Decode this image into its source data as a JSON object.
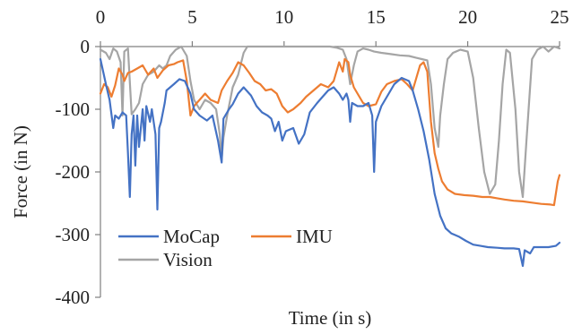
{
  "chart_data": {
    "type": "line",
    "title": "",
    "xlabel": "Time (in s)",
    "ylabel": "Force (in N)",
    "xlim": [
      0,
      25
    ],
    "ylim": [
      -400,
      0
    ],
    "x_ticks": [
      0,
      5,
      10,
      15,
      20,
      25
    ],
    "y_ticks": [
      0,
      -100,
      -200,
      -300,
      -400
    ],
    "x_tick_labels": [
      "0",
      "5",
      "10",
      "15",
      "20",
      "25"
    ],
    "y_tick_labels": [
      "0",
      "-100",
      "-200",
      "-300",
      "-400"
    ],
    "x_axis_position": "top",
    "grid": false,
    "legend_position": "lower-left",
    "series": [
      {
        "name": "MoCap",
        "color": "#4472c4",
        "points": [
          [
            0,
            -20
          ],
          [
            0.3,
            -60
          ],
          [
            0.5,
            -85
          ],
          [
            0.7,
            -130
          ],
          [
            0.8,
            -110
          ],
          [
            1.0,
            -115
          ],
          [
            1.2,
            -105
          ],
          [
            1.4,
            -110
          ],
          [
            1.5,
            -170
          ],
          [
            1.6,
            -240
          ],
          [
            1.7,
            -140
          ],
          [
            1.8,
            -110
          ],
          [
            1.9,
            -190
          ],
          [
            2.0,
            -110
          ],
          [
            2.1,
            -160
          ],
          [
            2.3,
            -100
          ],
          [
            2.4,
            -150
          ],
          [
            2.5,
            -95
          ],
          [
            2.7,
            -120
          ],
          [
            2.8,
            -100
          ],
          [
            3.0,
            -140
          ],
          [
            3.1,
            -260
          ],
          [
            3.2,
            -130
          ],
          [
            3.3,
            -120
          ],
          [
            3.5,
            -90
          ],
          [
            3.6,
            -70
          ],
          [
            3.8,
            -65
          ],
          [
            4.0,
            -60
          ],
          [
            4.3,
            -52
          ],
          [
            4.6,
            -55
          ],
          [
            4.9,
            -75
          ],
          [
            5.1,
            -100
          ],
          [
            5.4,
            -110
          ],
          [
            5.8,
            -118
          ],
          [
            6.1,
            -110
          ],
          [
            6.4,
            -150
          ],
          [
            6.6,
            -185
          ],
          [
            6.7,
            -115
          ],
          [
            7.0,
            -100
          ],
          [
            7.2,
            -92
          ],
          [
            7.5,
            -75
          ],
          [
            7.8,
            -65
          ],
          [
            8.2,
            -78
          ],
          [
            8.5,
            -95
          ],
          [
            8.8,
            -105
          ],
          [
            9.1,
            -110
          ],
          [
            9.3,
            -115
          ],
          [
            9.5,
            -135
          ],
          [
            9.7,
            -120
          ],
          [
            9.9,
            -150
          ],
          [
            10.1,
            -135
          ],
          [
            10.5,
            -130
          ],
          [
            10.8,
            -155
          ],
          [
            11.1,
            -140
          ],
          [
            11.4,
            -105
          ],
          [
            11.8,
            -90
          ],
          [
            12.1,
            -80
          ],
          [
            12.4,
            -70
          ],
          [
            12.7,
            -65
          ],
          [
            13.0,
            -75
          ],
          [
            13.2,
            -85
          ],
          [
            13.4,
            -75
          ],
          [
            13.5,
            -85
          ],
          [
            13.6,
            -120
          ],
          [
            13.7,
            -90
          ],
          [
            14.0,
            -95
          ],
          [
            14.3,
            -95
          ],
          [
            14.6,
            -90
          ],
          [
            14.8,
            -110
          ],
          [
            14.9,
            -200
          ],
          [
            15.0,
            -120
          ],
          [
            15.3,
            -95
          ],
          [
            15.6,
            -80
          ],
          [
            16.0,
            -60
          ],
          [
            16.4,
            -50
          ],
          [
            16.8,
            -55
          ],
          [
            17.0,
            -70
          ],
          [
            17.3,
            -100
          ],
          [
            17.6,
            -135
          ],
          [
            17.9,
            -180
          ],
          [
            18.2,
            -235
          ],
          [
            18.5,
            -270
          ],
          [
            18.8,
            -290
          ],
          [
            19.1,
            -298
          ],
          [
            19.5,
            -303
          ],
          [
            19.9,
            -310
          ],
          [
            20.3,
            -316
          ],
          [
            20.7,
            -318
          ],
          [
            21.1,
            -320
          ],
          [
            21.6,
            -321
          ],
          [
            22.0,
            -322
          ],
          [
            22.5,
            -322
          ],
          [
            22.8,
            -323
          ],
          [
            23.0,
            -350
          ],
          [
            23.1,
            -325
          ],
          [
            23.4,
            -330
          ],
          [
            23.6,
            -320
          ],
          [
            24.0,
            -320
          ],
          [
            24.4,
            -320
          ],
          [
            24.8,
            -318
          ],
          [
            25.0,
            -313
          ]
        ]
      },
      {
        "name": "IMU",
        "color": "#ed7d31",
        "points": [
          [
            0,
            -75
          ],
          [
            0.2,
            -60
          ],
          [
            0.4,
            -65
          ],
          [
            0.6,
            -80
          ],
          [
            0.8,
            -62
          ],
          [
            1.0,
            -35
          ],
          [
            1.2,
            -45
          ],
          [
            1.3,
            -55
          ],
          [
            1.5,
            -42
          ],
          [
            1.7,
            -40
          ],
          [
            2.0,
            -35
          ],
          [
            2.3,
            -30
          ],
          [
            2.6,
            -45
          ],
          [
            2.9,
            -35
          ],
          [
            3.1,
            -50
          ],
          [
            3.4,
            -38
          ],
          [
            3.7,
            -30
          ],
          [
            4.0,
            -28
          ],
          [
            4.2,
            -25
          ],
          [
            4.5,
            -22
          ],
          [
            4.7,
            -55
          ],
          [
            4.9,
            -110
          ],
          [
            5.1,
            -95
          ],
          [
            5.4,
            -85
          ],
          [
            5.7,
            -75
          ],
          [
            6.0,
            -85
          ],
          [
            6.4,
            -90
          ],
          [
            6.6,
            -70
          ],
          [
            6.9,
            -55
          ],
          [
            7.2,
            -42
          ],
          [
            7.5,
            -25
          ],
          [
            7.8,
            -30
          ],
          [
            8.1,
            -42
          ],
          [
            8.4,
            -55
          ],
          [
            8.7,
            -60
          ],
          [
            9.0,
            -70
          ],
          [
            9.3,
            -68
          ],
          [
            9.6,
            -75
          ],
          [
            9.9,
            -95
          ],
          [
            10.2,
            -105
          ],
          [
            10.5,
            -100
          ],
          [
            10.9,
            -90
          ],
          [
            11.2,
            -80
          ],
          [
            11.6,
            -70
          ],
          [
            12.0,
            -60
          ],
          [
            12.4,
            -65
          ],
          [
            12.7,
            -55
          ],
          [
            12.9,
            -35
          ],
          [
            13.0,
            -25
          ],
          [
            13.2,
            -40
          ],
          [
            13.3,
            -20
          ],
          [
            13.5,
            -25
          ],
          [
            13.6,
            -45
          ],
          [
            13.8,
            -65
          ],
          [
            14.0,
            -75
          ],
          [
            14.3,
            -90
          ],
          [
            14.6,
            -95
          ],
          [
            15.0,
            -92
          ],
          [
            15.3,
            -72
          ],
          [
            15.6,
            -60
          ],
          [
            16.0,
            -55
          ],
          [
            16.4,
            -52
          ],
          [
            16.7,
            -60
          ],
          [
            17.0,
            -70
          ],
          [
            17.2,
            -50
          ],
          [
            17.4,
            -30
          ],
          [
            17.6,
            -25
          ],
          [
            17.8,
            -40
          ],
          [
            18.0,
            -120
          ],
          [
            18.2,
            -170
          ],
          [
            18.4,
            -195
          ],
          [
            18.6,
            -215
          ],
          [
            18.9,
            -228
          ],
          [
            19.3,
            -235
          ],
          [
            19.8,
            -237
          ],
          [
            20.3,
            -238
          ],
          [
            20.8,
            -240
          ],
          [
            21.2,
            -240
          ],
          [
            21.6,
            -242
          ],
          [
            22.0,
            -244
          ],
          [
            22.5,
            -246
          ],
          [
            23.0,
            -247
          ],
          [
            23.5,
            -249
          ],
          [
            24.0,
            -251
          ],
          [
            24.5,
            -252
          ],
          [
            24.7,
            -253
          ],
          [
            24.9,
            -215
          ],
          [
            25.0,
            -205
          ]
        ]
      },
      {
        "name": "Vision",
        "color": "#a5a5a5",
        "points": [
          [
            0,
            -5
          ],
          [
            0.3,
            -10
          ],
          [
            0.5,
            -20
          ],
          [
            0.7,
            -3
          ],
          [
            0.9,
            -8
          ],
          [
            1.1,
            -25
          ],
          [
            1.2,
            -110
          ],
          [
            1.3,
            -8
          ],
          [
            1.5,
            -3
          ],
          [
            1.7,
            -108
          ],
          [
            1.9,
            -100
          ],
          [
            2.1,
            -90
          ],
          [
            2.3,
            -60
          ],
          [
            2.6,
            -45
          ],
          [
            2.9,
            -40
          ],
          [
            3.2,
            -30
          ],
          [
            3.4,
            -35
          ],
          [
            3.6,
            -30
          ],
          [
            3.8,
            -15
          ],
          [
            4.1,
            -5
          ],
          [
            4.4,
            0
          ],
          [
            4.7,
            -15
          ],
          [
            4.9,
            -55
          ],
          [
            5.1,
            -85
          ],
          [
            5.4,
            -100
          ],
          [
            5.7,
            -85
          ],
          [
            6.0,
            -90
          ],
          [
            6.3,
            -100
          ],
          [
            6.5,
            -140
          ],
          [
            6.6,
            -180
          ],
          [
            6.7,
            -145
          ],
          [
            6.9,
            -110
          ],
          [
            7.2,
            -65
          ],
          [
            7.5,
            -45
          ],
          [
            7.8,
            -10
          ],
          [
            8.0,
            0
          ],
          [
            8.3,
            0
          ],
          [
            8.7,
            0
          ],
          [
            9.2,
            0
          ],
          [
            9.6,
            0
          ],
          [
            10.0,
            0
          ],
          [
            10.5,
            0
          ],
          [
            11.0,
            0
          ],
          [
            11.5,
            0
          ],
          [
            12.0,
            0
          ],
          [
            12.5,
            0
          ],
          [
            12.9,
            -2
          ],
          [
            13.2,
            -5
          ],
          [
            13.4,
            -20
          ],
          [
            13.6,
            -60
          ],
          [
            13.8,
            -30
          ],
          [
            14.0,
            -8
          ],
          [
            14.3,
            -3
          ],
          [
            14.6,
            -5
          ],
          [
            14.9,
            -8
          ],
          [
            15.3,
            -10
          ],
          [
            15.8,
            -12
          ],
          [
            16.3,
            -14
          ],
          [
            16.8,
            -15
          ],
          [
            17.2,
            -18
          ],
          [
            17.5,
            -20
          ],
          [
            17.8,
            -22
          ],
          [
            18.0,
            -60
          ],
          [
            18.2,
            -130
          ],
          [
            18.4,
            -160
          ],
          [
            18.5,
            -110
          ],
          [
            18.7,
            -60
          ],
          [
            18.9,
            -20
          ],
          [
            19.2,
            -10
          ],
          [
            19.6,
            -5
          ],
          [
            20.0,
            -8
          ],
          [
            20.3,
            -50
          ],
          [
            20.6,
            -130
          ],
          [
            20.9,
            -200
          ],
          [
            21.2,
            -235
          ],
          [
            21.5,
            -220
          ],
          [
            21.7,
            -150
          ],
          [
            21.9,
            -60
          ],
          [
            22.1,
            -5
          ],
          [
            22.3,
            -10
          ],
          [
            22.6,
            -100
          ],
          [
            22.8,
            -200
          ],
          [
            23.0,
            -240
          ],
          [
            23.2,
            -150
          ],
          [
            23.5,
            -20
          ],
          [
            23.8,
            -5
          ],
          [
            24.1,
            0
          ],
          [
            24.4,
            -8
          ],
          [
            24.7,
            0
          ],
          [
            25.0,
            -3
          ]
        ]
      }
    ]
  }
}
